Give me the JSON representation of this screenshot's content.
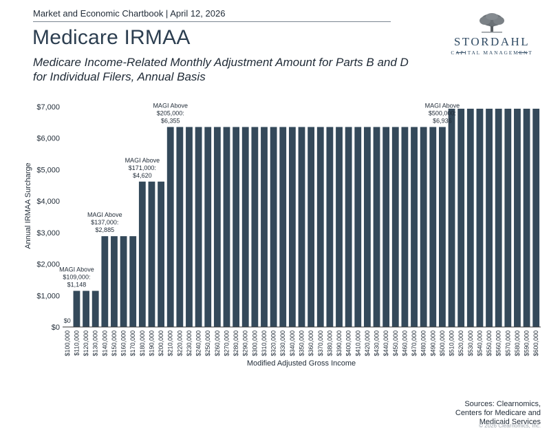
{
  "header": {
    "chartbook": "Market and Economic Chartbook | April 12, 2026",
    "title": "Medicare IRMAA",
    "subtitle_line1": "Medicare Income-Related Monthly Adjustment Amount for Parts B and D",
    "subtitle_line2": "for Individual Filers, Annual Basis"
  },
  "logo": {
    "name": "STORDAHL",
    "tagline": "CAPITAL MANAGEMENT",
    "icon": "tree-icon"
  },
  "footer": {
    "sources_line1": "Sources: Clearnomics,",
    "sources_line2": "Centers for Medicare and",
    "sources_line3": "Medicaid Services",
    "copyright": "© 2026 Clearnomics, Inc."
  },
  "colors": {
    "bar": "#34495a",
    "text": "#1f2a36",
    "axis": "#333333"
  },
  "chart_data": {
    "type": "bar",
    "xlabel": "Modified Adjusted Gross Income",
    "ylabel": "Annual IRMAA Surcharge",
    "ylim": [
      0,
      7000
    ],
    "yticks": [
      "$0",
      "$1,000",
      "$2,000",
      "$3,000",
      "$4,000",
      "$5,000",
      "$6,000",
      "$7,000"
    ],
    "grid": false,
    "categories": [
      "$100,000",
      "$110,000",
      "$120,000",
      "$130,000",
      "$140,000",
      "$150,000",
      "$160,000",
      "$170,000",
      "$180,000",
      "$190,000",
      "$200,000",
      "$210,000",
      "$220,000",
      "$230,000",
      "$240,000",
      "$250,000",
      "$260,000",
      "$270,000",
      "$280,000",
      "$290,000",
      "$300,000",
      "$310,000",
      "$320,000",
      "$330,000",
      "$340,000",
      "$350,000",
      "$360,000",
      "$370,000",
      "$380,000",
      "$390,000",
      "$400,000",
      "$410,000",
      "$420,000",
      "$430,000",
      "$440,000",
      "$450,000",
      "$460,000",
      "$470,000",
      "$480,000",
      "$490,000",
      "$500,000",
      "$510,000",
      "$520,000",
      "$530,000",
      "$540,000",
      "$550,000",
      "$560,000",
      "$570,000",
      "$580,000",
      "$590,000",
      "$600,000"
    ],
    "values": [
      0,
      1148,
      1148,
      1148,
      2885,
      2885,
      2885,
      2885,
      4620,
      4620,
      4620,
      6355,
      6355,
      6355,
      6355,
      6355,
      6355,
      6355,
      6355,
      6355,
      6355,
      6355,
      6355,
      6355,
      6355,
      6355,
      6355,
      6355,
      6355,
      6355,
      6355,
      6355,
      6355,
      6355,
      6355,
      6355,
      6355,
      6355,
      6355,
      6355,
      6355,
      6936,
      6936,
      6936,
      6936,
      6936,
      6936,
      6936,
      6936,
      6936,
      6936
    ],
    "annotations": [
      {
        "index": 0,
        "lines": [
          "$0"
        ]
      },
      {
        "index": 1,
        "lines": [
          "MAGI Above",
          "$109,000:",
          "$1,148"
        ]
      },
      {
        "index": 4,
        "lines": [
          "MAGI Above",
          "$137,000:",
          "$2,885"
        ]
      },
      {
        "index": 8,
        "lines": [
          "MAGI Above",
          "$171,000:",
          "$4,620"
        ]
      },
      {
        "index": 11,
        "lines": [
          "MAGI Above",
          "$205,000:",
          "$6,355"
        ]
      },
      {
        "index": 40,
        "lines": [
          "MAGI Above",
          "$500,000:",
          "$6,936"
        ]
      }
    ]
  }
}
